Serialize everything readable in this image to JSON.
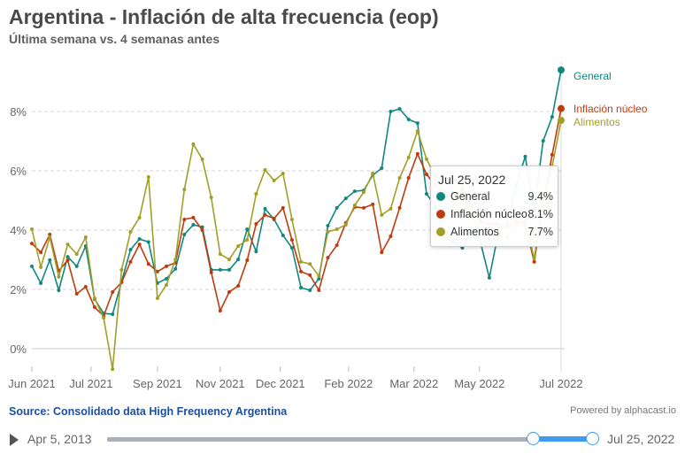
{
  "header": {
    "title": "Argentina - Inflación de alta frecuencia (eop)",
    "subtitle": "Última semana vs. 4 semanas antes"
  },
  "chart_data": {
    "type": "line",
    "title": "Argentina - Inflación de alta frecuencia (eop)",
    "subtitle": "Última semana vs. 4 semanas antes",
    "ylim": [
      -0.9,
      9.9
    ],
    "yticks": [
      {
        "value": 0,
        "label": "0%"
      },
      {
        "value": 2,
        "label": "2%"
      },
      {
        "value": 4,
        "label": "4%"
      },
      {
        "value": 6,
        "label": "6%"
      },
      {
        "value": 8,
        "label": "8%"
      }
    ],
    "xticks": [
      {
        "point": 0,
        "label": "Jun 2021"
      },
      {
        "point": 6.6,
        "label": "Jul 2021"
      },
      {
        "point": 14,
        "label": "Sep 2021"
      },
      {
        "point": 21,
        "label": "Nov 2021"
      },
      {
        "point": 27.7,
        "label": "Dec 2021"
      },
      {
        "point": 35.3,
        "label": "Feb 2022"
      },
      {
        "point": 42.6,
        "label": "Mar 2022"
      },
      {
        "point": 49.9,
        "label": "May 2022"
      },
      {
        "point": 59,
        "label": "Jul 2022"
      }
    ],
    "grid": true,
    "legend": "end-of-line labels",
    "series": [
      {
        "name": "General",
        "color": "#10877f",
        "values": [
          2.78,
          2.21,
          2.99,
          1.97,
          3.1,
          2.78,
          3.46,
          1.67,
          1.19,
          1.16,
          2.27,
          3.34,
          3.7,
          3.6,
          2.21,
          2.36,
          2.69,
          3.85,
          4.18,
          4.1,
          2.66,
          2.66,
          2.66,
          3.01,
          4.03,
          3.28,
          4.72,
          4.36,
          3.82,
          3.4,
          2.06,
          1.97,
          2.36,
          4.15,
          4.75,
          5.07,
          5.31,
          5.34,
          5.85,
          6.09,
          8.0,
          8.09,
          7.73,
          7.61,
          5.22,
          4.8,
          3.73,
          3.6,
          3.4,
          4.0,
          3.6,
          2.39,
          3.91,
          4.21,
          5.52,
          6.48,
          4.69,
          7.01,
          7.82,
          9.4
        ]
      },
      {
        "name": "Inflación núcleo",
        "color": "#bf3a0f",
        "values": [
          3.55,
          3.25,
          3.85,
          2.63,
          2.98,
          1.85,
          2.09,
          1.4,
          1.1,
          1.91,
          2.24,
          2.93,
          3.52,
          2.86,
          2.6,
          2.78,
          2.9,
          4.36,
          4.42,
          4.0,
          2.57,
          1.28,
          1.91,
          2.12,
          2.98,
          4.21,
          4.51,
          4.39,
          4.75,
          3.67,
          2.6,
          2.48,
          1.97,
          3.07,
          3.49,
          4.24,
          4.78,
          4.75,
          4.87,
          3.25,
          3.79,
          4.75,
          5.76,
          6.57,
          5.88,
          5.5,
          5.2,
          5.0,
          5.43,
          4.8,
          4.3,
          4.2,
          4.2,
          4.1,
          4.3,
          4.2,
          2.93,
          4.9,
          6.54,
          8.1
        ]
      },
      {
        "name": "Alimentos",
        "color": "#a29f27",
        "values": [
          4.03,
          2.75,
          3.76,
          2.42,
          3.52,
          3.19,
          3.76,
          1.7,
          1.04,
          -0.69,
          2.66,
          3.94,
          4.42,
          5.79,
          1.7,
          2.15,
          3.01,
          5.37,
          6.9,
          6.39,
          5.1,
          3.19,
          3.01,
          3.46,
          3.67,
          5.22,
          6.03,
          5.67,
          5.91,
          4.36,
          2.93,
          2.86,
          2.45,
          3.94,
          4.03,
          4.18,
          4.84,
          5.28,
          5.91,
          4.51,
          4.72,
          5.76,
          6.45,
          7.34,
          6.39,
          5.8,
          5.3,
          4.9,
          5.3,
          4.5,
          4.0,
          3.9,
          3.8,
          3.76,
          4.2,
          4.3,
          3.04,
          4.9,
          6.15,
          7.7
        ]
      }
    ]
  },
  "tooltip": {
    "date": "Jul 25, 2022",
    "rows": [
      {
        "name": "General",
        "value": "9.4%",
        "color": "#10877f"
      },
      {
        "name": "Inflación núcleo",
        "value": "8.1%",
        "color": "#bf3a0f"
      },
      {
        "name": "Alimentos",
        "value": "7.7%",
        "color": "#a29f27"
      }
    ]
  },
  "footer": {
    "source": "Source: Consolidado data High Frequency Argentina",
    "powered": "Powered by alphacast.io"
  },
  "range": {
    "start": "Apr 5, 2013",
    "end": "Jul 25, 2022",
    "accent": "#3d9cf0"
  }
}
